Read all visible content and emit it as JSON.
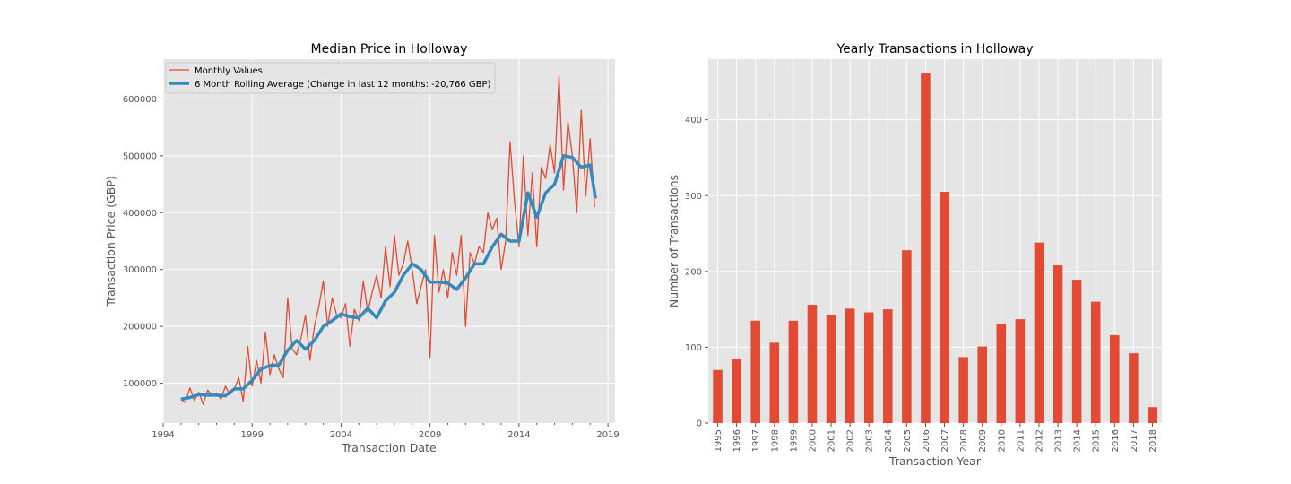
{
  "chart_data": [
    {
      "type": "line",
      "title": "Median Price in Holloway",
      "xlabel": "Transaction Date",
      "ylabel": "Transaction Price (GBP)",
      "xlim": [
        1994.0,
        2019.4
      ],
      "ylim": [
        30000,
        670000
      ],
      "xticks": [
        1994,
        1999,
        2004,
        2009,
        2014,
        2019
      ],
      "yticks": [
        100000,
        200000,
        300000,
        400000,
        500000,
        600000
      ],
      "grid": true,
      "legend_position": "upper-left",
      "series": [
        {
          "name": "Monthly Values",
          "color": "#E24A33",
          "x": [
            1995.0,
            1995.25,
            1995.5,
            1995.75,
            1996.0,
            1996.25,
            1996.5,
            1996.75,
            1997.0,
            1997.25,
            1997.5,
            1997.75,
            1998.0,
            1998.25,
            1998.5,
            1998.75,
            1999.0,
            1999.25,
            1999.5,
            1999.75,
            2000.0,
            2000.25,
            2000.5,
            2000.75,
            2001.0,
            2001.25,
            2001.5,
            2001.75,
            2002.0,
            2002.25,
            2002.5,
            2002.75,
            2003.0,
            2003.25,
            2003.5,
            2003.75,
            2004.0,
            2004.25,
            2004.5,
            2004.75,
            2005.0,
            2005.25,
            2005.5,
            2005.75,
            2006.0,
            2006.25,
            2006.5,
            2006.75,
            2007.0,
            2007.25,
            2007.5,
            2007.75,
            2008.0,
            2008.25,
            2008.5,
            2008.75,
            2009.0,
            2009.25,
            2009.5,
            2009.75,
            2010.0,
            2010.25,
            2010.5,
            2010.75,
            2011.0,
            2011.25,
            2011.5,
            2011.75,
            2012.0,
            2012.25,
            2012.5,
            2012.75,
            2013.0,
            2013.25,
            2013.5,
            2013.75,
            2014.0,
            2014.25,
            2014.5,
            2014.75,
            2015.0,
            2015.25,
            2015.5,
            2015.75,
            2016.0,
            2016.25,
            2016.5,
            2016.75,
            2017.0,
            2017.25,
            2017.5,
            2017.75,
            2018.0,
            2018.25
          ],
          "values": [
            72000,
            66000,
            92000,
            70000,
            84000,
            63000,
            88000,
            78000,
            82000,
            72000,
            95000,
            80000,
            90000,
            110000,
            68000,
            165000,
            95000,
            140000,
            100000,
            190000,
            115000,
            150000,
            125000,
            110000,
            250000,
            160000,
            150000,
            180000,
            220000,
            140000,
            200000,
            235000,
            280000,
            200000,
            250000,
            220000,
            215000,
            240000,
            165000,
            230000,
            210000,
            280000,
            225000,
            260000,
            290000,
            250000,
            340000,
            270000,
            360000,
            290000,
            310000,
            350000,
            300000,
            240000,
            270000,
            300000,
            145000,
            360000,
            260000,
            300000,
            250000,
            330000,
            290000,
            360000,
            200000,
            330000,
            310000,
            340000,
            330000,
            400000,
            370000,
            390000,
            300000,
            350000,
            525000,
            420000,
            340000,
            500000,
            360000,
            470000,
            340000,
            480000,
            460000,
            520000,
            470000,
            640000,
            440000,
            560000,
            500000,
            400000,
            580000,
            430000,
            530000,
            410000
          ]
        },
        {
          "name": "6 Month Rolling Average (Change in last 12 months: -20,766 GBP)",
          "color": "#348ABD",
          "x": [
            1995.0,
            1995.5,
            1996.0,
            1996.5,
            1997.0,
            1997.5,
            1998.0,
            1998.5,
            1999.0,
            1999.5,
            2000.0,
            2000.5,
            2001.0,
            2001.5,
            2002.0,
            2002.5,
            2003.0,
            2003.5,
            2004.0,
            2004.5,
            2005.0,
            2005.5,
            2006.0,
            2006.5,
            2007.0,
            2007.5,
            2008.0,
            2008.5,
            2009.0,
            2009.5,
            2010.0,
            2010.5,
            2011.0,
            2011.5,
            2012.0,
            2012.5,
            2013.0,
            2013.5,
            2014.0,
            2014.5,
            2015.0,
            2015.5,
            2016.0,
            2016.5,
            2017.0,
            2017.5,
            2018.0,
            2018.3
          ],
          "values": [
            72000,
            75000,
            80000,
            79000,
            79000,
            78000,
            90000,
            90000,
            105000,
            125000,
            131000,
            132000,
            158000,
            175000,
            160000,
            175000,
            200000,
            210000,
            222000,
            217000,
            215000,
            232000,
            215000,
            245000,
            260000,
            290000,
            310000,
            300000,
            278000,
            278000,
            276000,
            265000,
            285000,
            310000,
            310000,
            340000,
            362000,
            350000,
            350000,
            435000,
            392000,
            435000,
            450000,
            500000,
            497000,
            480000,
            484000,
            425000
          ]
        }
      ]
    },
    {
      "type": "bar",
      "title": "Yearly Transactions in Holloway",
      "xlabel": "Transaction Year",
      "ylabel": "Number of Transactions",
      "ylim": [
        0,
        480
      ],
      "yticks": [
        0,
        100,
        200,
        300,
        400
      ],
      "grid": true,
      "color": "#E24A33",
      "categories": [
        "1995",
        "1996",
        "1997",
        "1998",
        "1999",
        "2000",
        "2001",
        "2002",
        "2003",
        "2004",
        "2005",
        "2006",
        "2007",
        "2008",
        "2009",
        "2010",
        "2011",
        "2012",
        "2013",
        "2014",
        "2015",
        "2016",
        "2017",
        "2018"
      ],
      "values": [
        70,
        84,
        135,
        106,
        135,
        156,
        142,
        151,
        146,
        150,
        228,
        461,
        305,
        87,
        101,
        131,
        137,
        238,
        208,
        189,
        160,
        116,
        92,
        21
      ]
    }
  ]
}
